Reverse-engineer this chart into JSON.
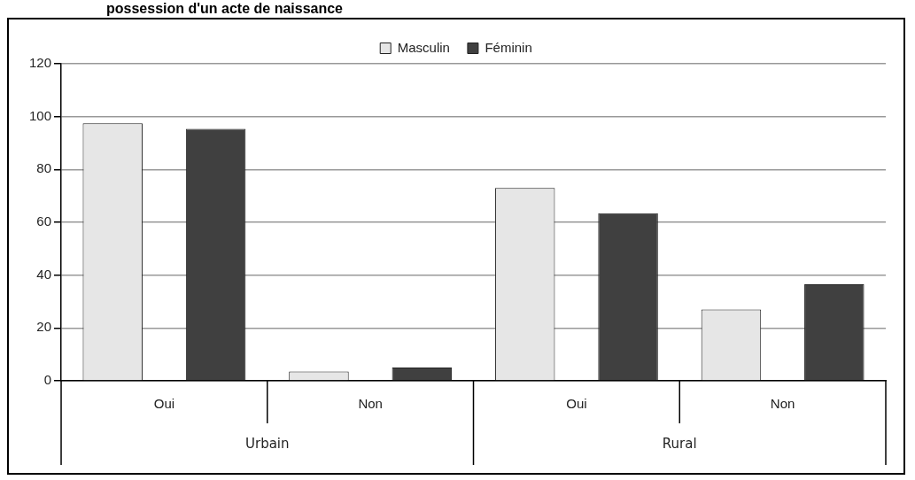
{
  "chart_data": {
    "type": "bar",
    "title": "possession d'un acte de naissance",
    "categories": [
      "Oui",
      "Non",
      "Oui",
      "Non"
    ],
    "series": [
      {
        "name": "Masculin",
        "color": "#e6e6e6",
        "values": [
          97.5,
          3.5,
          73,
          27
        ]
      },
      {
        "name": "Féminin",
        "color": "#404040",
        "values": [
          95.4,
          5,
          63.4,
          36.5
        ]
      }
    ],
    "annotations": [
      "Urbain",
      "Rural"
    ],
    "ylim": [
      0,
      120
    ],
    "yticks": [
      0,
      20,
      40,
      60,
      80,
      100,
      120
    ],
    "grid": "y",
    "legend": "top"
  }
}
